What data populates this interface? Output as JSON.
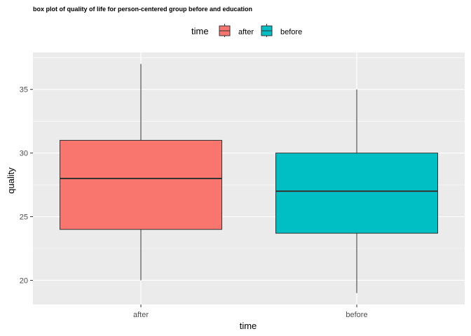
{
  "chart_data": {
    "type": "box",
    "title": "box plot of quality of life for person-centered group before and education",
    "xlabel": "time",
    "ylabel": "quality",
    "categories": [
      "after",
      "before"
    ],
    "ylim": [
      18.1,
      37.9
    ],
    "yticks": [
      20,
      25,
      30,
      35
    ],
    "grid": true,
    "legend": {
      "title": "time",
      "position": "top",
      "entries": [
        "after",
        "before"
      ]
    },
    "series": [
      {
        "name": "after",
        "color": "#F8766D",
        "min": 20,
        "q1": 24,
        "median": 28,
        "q3": 31,
        "max": 37
      },
      {
        "name": "before",
        "color": "#00BFC4",
        "min": 19,
        "q1": 23.7,
        "median": 27,
        "q3": 30,
        "max": 35
      }
    ]
  }
}
